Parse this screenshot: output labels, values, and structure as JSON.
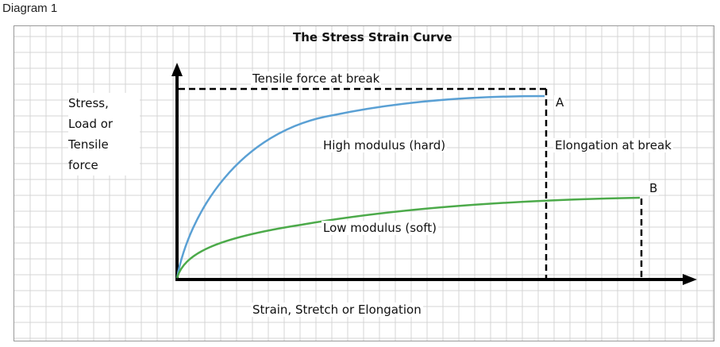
{
  "caption": "Diagram 1",
  "title": "The Stress Strain Curve",
  "y_axis_label_lines": [
    "Stress,",
    "Load  or",
    "Tensile",
    "force"
  ],
  "x_axis_label": "Strain, Stretch or Elongation",
  "tensile_label": "Tensile force at break",
  "high_label": "High modulus (hard)",
  "low_label": "Low modulus (soft)",
  "elongation_label": "Elongation at break",
  "point_a": "A",
  "point_b": "B",
  "colors": {
    "high": "#5aa0d4",
    "low": "#4caa4a",
    "axis": "#000000",
    "grid": "#d4d4d4"
  }
}
